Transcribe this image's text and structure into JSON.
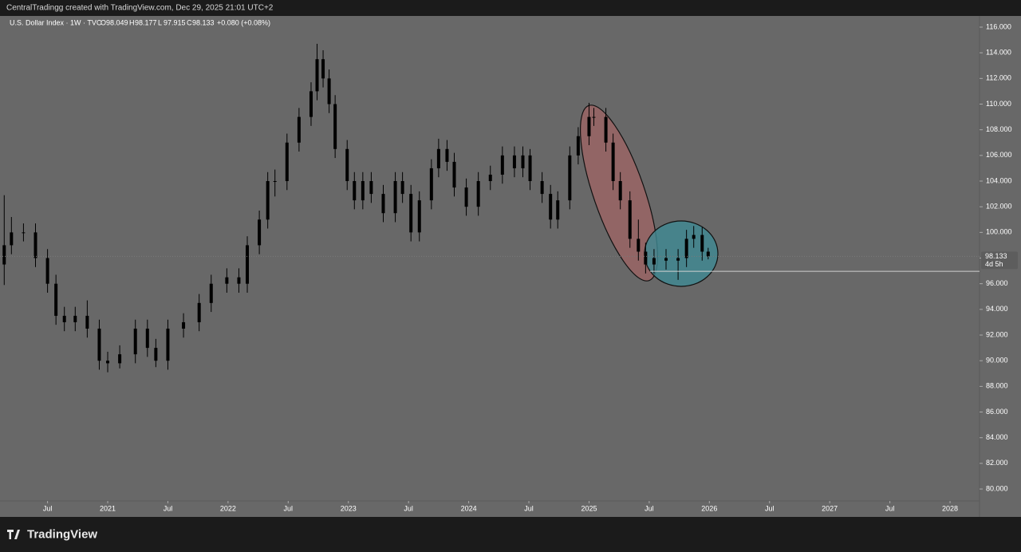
{
  "chart_data": {
    "type": "candlestick",
    "header": "CentralTradingg created with TradingView.com, Dec 29, 2025 21:01 UTC+2",
    "symbol": "U.S. Dollar Index · 1W · TVC",
    "ohlc": [
      {
        "label": "O",
        "value": 98.049
      },
      {
        "label": "H",
        "value": 98.177
      },
      {
        "label": "L",
        "value": 97.915
      },
      {
        "label": "C",
        "value": 98.133
      }
    ],
    "change": "+0.080 (+0.08%)",
    "last_price": 98.133,
    "countdown": "4d 5h",
    "hline": 96.97,
    "brand": "TradingView",
    "color": "#000000",
    "x": [
      2020.14,
      2020.2,
      2020.3,
      2020.4,
      2020.5,
      2020.57,
      2020.64,
      2020.73,
      2020.83,
      2020.93,
      2021.0,
      2021.1,
      2021.23,
      2021.33,
      2021.4,
      2021.5,
      2021.63,
      2021.76,
      2021.86,
      2021.99,
      2022.09,
      2022.16,
      2022.26,
      2022.33,
      2022.39,
      2022.49,
      2022.59,
      2022.69,
      2022.74,
      2022.79,
      2022.84,
      2022.89,
      2022.99,
      2023.05,
      2023.12,
      2023.19,
      2023.29,
      2023.39,
      2023.45,
      2023.52,
      2023.59,
      2023.69,
      2023.75,
      2023.82,
      2023.88,
      2023.98,
      2024.08,
      2024.18,
      2024.28,
      2024.38,
      2024.45,
      2024.51,
      2024.61,
      2024.68,
      2024.74,
      2024.84,
      2024.91,
      2025.0,
      2025.04,
      2025.14,
      2025.2,
      2025.26,
      2025.34,
      2025.41,
      2025.47,
      2025.54,
      2025.64,
      2025.74,
      2025.81,
      2025.87,
      2025.94,
      2025.99
    ],
    "open": [
      97.5,
      99,
      100,
      100,
      98,
      96,
      93.5,
      93,
      93.5,
      92.5,
      90,
      89.8,
      90.5,
      92.5,
      91,
      90,
      92.5,
      93,
      94.5,
      96,
      96.5,
      96,
      99,
      101,
      104,
      104,
      107,
      109,
      111,
      113.5,
      112,
      110,
      106.5,
      104,
      102.5,
      104,
      103,
      101.5,
      104,
      103,
      100,
      102.5,
      105,
      106.5,
      105.5,
      103.5,
      102,
      104,
      104.5,
      106,
      105,
      106,
      104,
      103,
      101,
      102.5,
      106,
      107.5,
      109,
      109,
      107,
      104,
      102.5,
      99.5,
      98.5,
      97.5,
      98,
      97.8,
      98,
      99.5,
      99.8,
      98.5
    ],
    "high": [
      102.9,
      101.2,
      100.7,
      100.7,
      98.7,
      96.7,
      94.2,
      94.2,
      94.7,
      93.2,
      90.7,
      91.2,
      93.2,
      93.2,
      91.7,
      93.2,
      93.7,
      95.2,
      96.7,
      97.2,
      97.2,
      99.7,
      101.7,
      104.7,
      104.9,
      107.7,
      109.7,
      111.7,
      114.7,
      114.2,
      112.7,
      110.7,
      107.2,
      104.7,
      104.7,
      104.7,
      103.7,
      104.7,
      104.7,
      103.7,
      103.2,
      105.7,
      107.3,
      107.2,
      106.2,
      104.2,
      104.7,
      105.2,
      106.7,
      106.7,
      106.7,
      106.5,
      104.7,
      103.7,
      103.2,
      106.7,
      108.2,
      110.1,
      109.7,
      109.7,
      107.7,
      104.7,
      103.2,
      101,
      99.2,
      98.7,
      98.7,
      98.7,
      100.2,
      100.5,
      100.4,
      98.8
    ],
    "low": [
      95.9,
      98.3,
      99.3,
      97.3,
      95.3,
      92.8,
      92.3,
      92.3,
      91.8,
      89.3,
      89.1,
      89.4,
      89.8,
      90.3,
      89.5,
      89.3,
      91.8,
      92.3,
      93.8,
      95.3,
      95.3,
      95.3,
      98.3,
      100.3,
      102.8,
      103.3,
      106.3,
      108.3,
      110.3,
      111.3,
      109.3,
      105.8,
      103.3,
      101.8,
      101.8,
      102.3,
      100.8,
      100.8,
      102.3,
      99.3,
      99.3,
      101.8,
      104.3,
      104.8,
      102.8,
      101.3,
      101.3,
      103.3,
      103.8,
      104.3,
      104.3,
      103.3,
      102.3,
      100.3,
      100.3,
      101.8,
      105.3,
      106.8,
      108.3,
      106.3,
      103.3,
      101.8,
      98.8,
      97.8,
      96.8,
      96.8,
      97.1,
      96.3,
      97.3,
      98.8,
      97.8,
      97.9
    ],
    "close": [
      99,
      100,
      100,
      98,
      96,
      93.5,
      93,
      93.5,
      92.5,
      90,
      89.8,
      90.5,
      92.5,
      91,
      90,
      92.5,
      93,
      94.5,
      96,
      96.5,
      96,
      99,
      101,
      104,
      104,
      107,
      109,
      111,
      113.5,
      112,
      110,
      106.5,
      104,
      102.5,
      104,
      103,
      101.5,
      104,
      103,
      100,
      102.5,
      105,
      106.5,
      105.5,
      103.5,
      102,
      104,
      104.5,
      106,
      105,
      106,
      104,
      103,
      101,
      102.5,
      106,
      107.5,
      109,
      109,
      107,
      104,
      102.5,
      99.5,
      98.5,
      97.5,
      98,
      97.8,
      98,
      99.5,
      99.8,
      98.5,
      98.133
    ],
    "xlim": [
      2020.105,
      2028.245
    ],
    "ylim": [
      79.07,
      116.87
    ],
    "xticks": [
      {
        "value": 2020.5,
        "label": "Jul"
      },
      {
        "value": 2021,
        "label": "2021"
      },
      {
        "value": 2021.5,
        "label": "Jul"
      },
      {
        "value": 2022,
        "label": "2022"
      },
      {
        "value": 2022.5,
        "label": "Jul"
      },
      {
        "value": 2023,
        "label": "2023"
      },
      {
        "value": 2023.5,
        "label": "Jul"
      },
      {
        "value": 2024,
        "label": "2024"
      },
      {
        "value": 2024.5,
        "label": "Jul"
      },
      {
        "value": 2025,
        "label": "2025"
      },
      {
        "value": 2025.5,
        "label": "Jul"
      },
      {
        "value": 2026,
        "label": "2026"
      },
      {
        "value": 2026.5,
        "label": "Jul"
      },
      {
        "value": 2027,
        "label": "2027"
      },
      {
        "value": 2027.5,
        "label": "Jul"
      },
      {
        "value": 2028,
        "label": "2028"
      }
    ],
    "yticks": [
      {
        "value": 80,
        "label": "80.000"
      },
      {
        "value": 82,
        "label": "82.000"
      },
      {
        "value": 84,
        "label": "84.000"
      },
      {
        "value": 86,
        "label": "86.000"
      },
      {
        "value": 88,
        "label": "88.000"
      },
      {
        "value": 90,
        "label": "90.000"
      },
      {
        "value": 92,
        "label": "92.000"
      },
      {
        "value": 94,
        "label": "94.000"
      },
      {
        "value": 96,
        "label": "96.000"
      },
      {
        "value": 98,
        "label": "98.000"
      },
      {
        "value": 100,
        "label": "100.000"
      },
      {
        "value": 102,
        "label": "102.000"
      },
      {
        "value": 104,
        "label": "104.000"
      },
      {
        "value": 106,
        "label": "106.000"
      },
      {
        "value": 108,
        "label": "108.000"
      },
      {
        "value": 110,
        "label": "110.000"
      },
      {
        "value": 112,
        "label": "112.000"
      },
      {
        "value": 114,
        "label": "114.000"
      },
      {
        "value": 116,
        "label": "116.000"
      }
    ]
  }
}
